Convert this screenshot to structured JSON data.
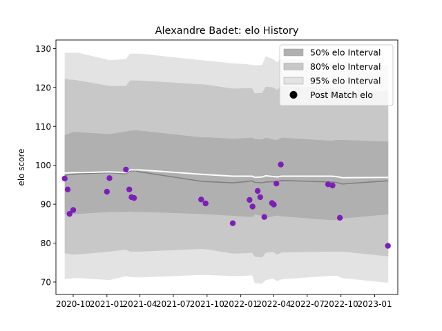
{
  "chart_data": {
    "type": "scatter",
    "title": "Alexandre Badet: elo History",
    "xlabel": "",
    "ylabel": "elo score",
    "xlim": [
      "2020-08-15",
      "2023-03-05"
    ],
    "ylim": [
      66.8,
      132.2
    ],
    "x_ticks": [
      {
        "date": "2020-10-01",
        "label": "2020-10"
      },
      {
        "date": "2021-01-01",
        "label": "2021-01"
      },
      {
        "date": "2021-04-01",
        "label": "2021-04"
      },
      {
        "date": "2021-07-01",
        "label": "2021-07"
      },
      {
        "date": "2021-10-01",
        "label": "2021-10"
      },
      {
        "date": "2022-01-01",
        "label": "2022-01"
      },
      {
        "date": "2022-04-01",
        "label": "2022-04"
      },
      {
        "date": "2022-07-01",
        "label": "2022-07"
      },
      {
        "date": "2022-10-01",
        "label": "2022-10"
      },
      {
        "date": "2023-01-01",
        "label": "2023-01"
      }
    ],
    "y_ticks": [
      70,
      80,
      90,
      100,
      110,
      120,
      130
    ],
    "colors": {
      "band_50": "#b0b0b0",
      "band_80": "#c8c8c8",
      "band_95": "#e3e3e3",
      "mean_line": "#808080",
      "mode_line": "#ffffff",
      "points": "#7e1eb8"
    },
    "legend": {
      "placement": "top-right",
      "entries": [
        {
          "label": "50% elo Interval",
          "kind": "band_50"
        },
        {
          "label": "80% elo Interval",
          "kind": "band_80"
        },
        {
          "label": "95% elo Interval",
          "kind": "band_95"
        },
        {
          "label": "Post Match elo",
          "kind": "point"
        }
      ]
    },
    "bands": [
      {
        "date": "2020-09-08",
        "lo95": 70.8,
        "lo80": 77.4,
        "lo50": 87.4,
        "mid": 97.4,
        "hi50": 107.8,
        "hi80": 122.3,
        "hi95": 128.9
      },
      {
        "date": "2020-09-21",
        "lo95": 70.8,
        "lo80": 77.2,
        "lo50": 87.5,
        "mid": 97.6,
        "hi50": 108.2,
        "hi80": 122.0,
        "hi95": 128.9
      },
      {
        "date": "2020-10-01",
        "lo95": 71.0,
        "lo80": 77.0,
        "lo50": 87.5,
        "mid": 97.7,
        "hi50": 108.6,
        "hi80": 122.0,
        "hi95": 128.9
      },
      {
        "date": "2020-10-16",
        "lo95": 71.0,
        "lo80": 77.1,
        "lo50": 87.5,
        "mid": 97.8,
        "hi50": 108.5,
        "hi80": 121.8,
        "hi95": 128.9
      },
      {
        "date": "2021-01-08",
        "lo95": 70.5,
        "lo80": 77.8,
        "lo50": 88.0,
        "mid": 98.1,
        "hi50": 108.0,
        "hi80": 120.4,
        "hi95": 127.0
      },
      {
        "date": "2021-02-22",
        "lo95": 71.5,
        "lo80": 78.3,
        "lo50": 88.0,
        "mid": 97.8,
        "hi50": 108.7,
        "hi80": 120.4,
        "hi95": 127.3
      },
      {
        "date": "2021-03-05",
        "lo95": 71.3,
        "lo80": 77.8,
        "lo50": 88.1,
        "mid": 98.5,
        "hi50": 108.9,
        "hi80": 121.8,
        "hi95": 128.7
      },
      {
        "date": "2021-03-20",
        "lo95": 71.2,
        "lo80": 77.8,
        "lo50": 88.0,
        "mid": 98.6,
        "hi50": 109.0,
        "hi80": 121.8,
        "hi95": 128.7
      },
      {
        "date": "2021-04-01",
        "lo95": 71.2,
        "lo80": 77.8,
        "lo50": 88.0,
        "mid": 98.3,
        "hi50": 108.9,
        "hi80": 121.8,
        "hi95": 128.7
      },
      {
        "date": "2021-09-15",
        "lo95": 71.8,
        "lo80": 78.5,
        "lo50": 87.5,
        "mid": 95.9,
        "hi50": 107.2,
        "hi80": 120.8,
        "hi95": 127.0
      },
      {
        "date": "2021-10-01",
        "lo95": 71.8,
        "lo80": 78.4,
        "lo50": 87.4,
        "mid": 95.8,
        "hi50": 107.2,
        "hi80": 120.7,
        "hi95": 126.9
      },
      {
        "date": "2021-12-10",
        "lo95": 71.5,
        "lo80": 77.3,
        "lo50": 87.0,
        "mid": 95.5,
        "hi50": 106.8,
        "hi80": 119.7,
        "hi95": 126.2
      },
      {
        "date": "2022-01-15",
        "lo95": 71.6,
        "lo80": 77.4,
        "lo50": 86.8,
        "mid": 95.8,
        "hi50": 107.0,
        "hi80": 119.8,
        "hi95": 126.0
      },
      {
        "date": "2022-02-01",
        "lo95": 71.7,
        "lo80": 77.5,
        "lo50": 86.7,
        "mid": 96.0,
        "hi50": 107.1,
        "hi80": 119.8,
        "hi95": 125.8
      },
      {
        "date": "2022-02-08",
        "lo95": 69.7,
        "lo80": 76.5,
        "lo50": 87.3,
        "mid": 95.6,
        "hi50": 106.7,
        "hi80": 118.5,
        "hi95": 125.7
      },
      {
        "date": "2022-02-28",
        "lo95": 69.6,
        "lo80": 76.3,
        "lo50": 87.0,
        "mid": 95.5,
        "hi50": 106.6,
        "hi80": 118.6,
        "hi95": 125.8
      },
      {
        "date": "2022-03-10",
        "lo95": 70.5,
        "lo80": 77.5,
        "lo50": 86.4,
        "mid": 95.7,
        "hi50": 107.1,
        "hi80": 120.2,
        "hi95": 128.0
      },
      {
        "date": "2022-03-30",
        "lo95": 70.8,
        "lo80": 77.7,
        "lo50": 86.9,
        "mid": 95.8,
        "hi50": 106.6,
        "hi80": 120.0,
        "hi95": 127.3
      },
      {
        "date": "2022-04-10",
        "lo95": 70.2,
        "lo80": 77.0,
        "lo50": 87.1,
        "mid": 95.8,
        "hi50": 106.5,
        "hi80": 119.4,
        "hi95": 126.5
      },
      {
        "date": "2022-04-22",
        "lo95": 70.7,
        "lo80": 77.6,
        "lo50": 86.9,
        "mid": 96.1,
        "hi50": 107.1,
        "hi80": 120.5,
        "hi95": 127.5
      },
      {
        "date": "2022-09-05",
        "lo95": 71.6,
        "lo80": 77.8,
        "lo50": 85.9,
        "mid": 95.7,
        "hi50": 106.3,
        "hi80": 119.8,
        "hi95": 126.5
      },
      {
        "date": "2022-09-18",
        "lo95": 71.6,
        "lo80": 77.8,
        "lo50": 85.9,
        "mid": 95.6,
        "hi50": 106.5,
        "hi80": 119.7,
        "hi95": 126.5
      },
      {
        "date": "2022-10-05",
        "lo95": 71.0,
        "lo80": 77.8,
        "lo50": 86.3,
        "mid": 95.2,
        "hi50": 106.5,
        "hi80": 119.3,
        "hi95": 126.0
      },
      {
        "date": "2023-02-07",
        "lo95": 69.8,
        "lo80": 76.6,
        "lo50": 87.4,
        "mid": 96.0,
        "hi50": 106.1,
        "hi80": 119.0,
        "hi95": 125.8
      }
    ],
    "mode_line": [
      {
        "date": "2020-09-08",
        "y": 98.0
      },
      {
        "date": "2020-10-01",
        "y": 98.1
      },
      {
        "date": "2021-01-08",
        "y": 98.3
      },
      {
        "date": "2021-02-22",
        "y": 98.1
      },
      {
        "date": "2021-03-05",
        "y": 98.8
      },
      {
        "date": "2021-04-01",
        "y": 98.8
      },
      {
        "date": "2021-09-15",
        "y": 97.7
      },
      {
        "date": "2021-10-01",
        "y": 97.6
      },
      {
        "date": "2021-12-10",
        "y": 97.2
      },
      {
        "date": "2022-02-01",
        "y": 97.2
      },
      {
        "date": "2022-02-08",
        "y": 96.9
      },
      {
        "date": "2022-02-28",
        "y": 97.0
      },
      {
        "date": "2022-03-10",
        "y": 97.3
      },
      {
        "date": "2022-04-10",
        "y": 97.0
      },
      {
        "date": "2022-04-22",
        "y": 97.2
      },
      {
        "date": "2022-09-05",
        "y": 97.2
      },
      {
        "date": "2022-09-18",
        "y": 97.1
      },
      {
        "date": "2022-10-05",
        "y": 96.8
      },
      {
        "date": "2023-02-07",
        "y": 96.9
      }
    ],
    "points": [
      {
        "date": "2020-09-08",
        "y": 96.6
      },
      {
        "date": "2020-09-16",
        "y": 93.8
      },
      {
        "date": "2020-09-21",
        "y": 87.5
      },
      {
        "date": "2020-10-01",
        "y": 88.5
      },
      {
        "date": "2021-01-01",
        "y": 93.2
      },
      {
        "date": "2021-01-08",
        "y": 96.7
      },
      {
        "date": "2021-02-22",
        "y": 98.9
      },
      {
        "date": "2021-03-03",
        "y": 93.8
      },
      {
        "date": "2021-03-09",
        "y": 91.8
      },
      {
        "date": "2021-03-16",
        "y": 91.6
      },
      {
        "date": "2021-09-15",
        "y": 91.2
      },
      {
        "date": "2021-09-27",
        "y": 90.2
      },
      {
        "date": "2021-12-10",
        "y": 85.1
      },
      {
        "date": "2022-01-25",
        "y": 91.1
      },
      {
        "date": "2022-02-02",
        "y": 89.4
      },
      {
        "date": "2022-02-16",
        "y": 93.4
      },
      {
        "date": "2022-02-23",
        "y": 91.8
      },
      {
        "date": "2022-03-06",
        "y": 86.7
      },
      {
        "date": "2022-03-27",
        "y": 90.3
      },
      {
        "date": "2022-04-01",
        "y": 89.9
      },
      {
        "date": "2022-04-08",
        "y": 95.3
      },
      {
        "date": "2022-04-20",
        "y": 100.2
      },
      {
        "date": "2022-08-27",
        "y": 95.1
      },
      {
        "date": "2022-09-08",
        "y": 94.8
      },
      {
        "date": "2022-09-28",
        "y": 86.5
      },
      {
        "date": "2023-02-06",
        "y": 79.3
      }
    ]
  }
}
